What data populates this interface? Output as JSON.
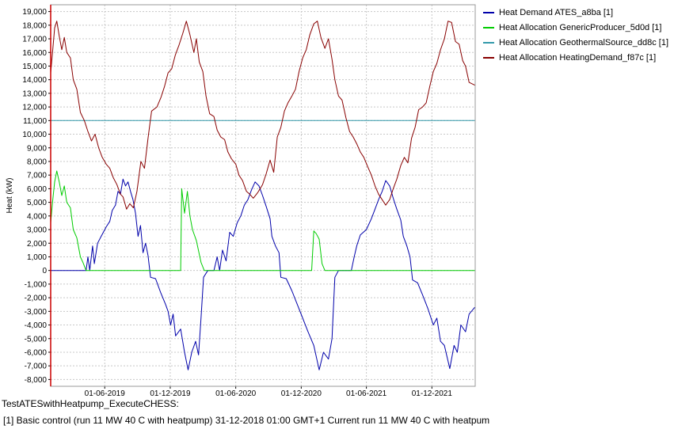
{
  "chart_data": {
    "type": "line",
    "xlabel": "",
    "ylabel": "Heat (kW)",
    "ylim": [
      -8500,
      19500
    ],
    "yticks": [
      19000,
      18000,
      17000,
      16000,
      15000,
      14000,
      13000,
      12000,
      11000,
      10000,
      9000,
      8000,
      7000,
      6000,
      5000,
      4000,
      3000,
      2000,
      1000,
      0,
      -1000,
      -2000,
      -3000,
      -4000,
      -5000,
      -6000,
      -7000,
      -8000
    ],
    "ytick_labels": [
      "19,000",
      "18,000",
      "17,000",
      "16,000",
      "15,000",
      "14,000",
      "13,000",
      "12,000",
      "11,000",
      "10,000",
      "9,000",
      "8,000",
      "7,000",
      "6,000",
      "5,000",
      "4,000",
      "3,000",
      "2,000",
      "1,000",
      "0",
      "-1,000",
      "-2,000",
      "-3,000",
      "-4,000",
      "-5,000",
      "-6,000",
      "-7,000",
      "-8,000"
    ],
    "xlim": [
      "2019-01-01",
      "2022-04-01"
    ],
    "xticks": [
      "2019-06-01",
      "2019-12-01",
      "2020-06-01",
      "2020-12-01",
      "2021-06-01",
      "2021-12-01"
    ],
    "xtick_labels": [
      "01-06-2019",
      "01-12-2019",
      "01-06-2020",
      "01-12-2020",
      "01-06-2021",
      "01-12-2021"
    ],
    "grid": true,
    "legend_position": "right",
    "series": [
      {
        "name": "Heat Demand ATES_a8ba [1]",
        "color": "#0000aa",
        "points": [
          [
            "2019-01-01",
            0
          ],
          [
            "2019-02-15",
            0
          ],
          [
            "2019-04-01",
            0
          ],
          [
            "2019-04-10",
            0
          ],
          [
            "2019-04-15",
            1000
          ],
          [
            "2019-04-20",
            0
          ],
          [
            "2019-04-28",
            1800
          ],
          [
            "2019-05-03",
            500
          ],
          [
            "2019-05-12",
            2000
          ],
          [
            "2019-05-22",
            2500
          ],
          [
            "2019-06-05",
            3200
          ],
          [
            "2019-06-15",
            3600
          ],
          [
            "2019-06-22",
            4400
          ],
          [
            "2019-07-01",
            4800
          ],
          [
            "2019-07-08",
            5800
          ],
          [
            "2019-07-15",
            5600
          ],
          [
            "2019-07-22",
            6700
          ],
          [
            "2019-07-29",
            6200
          ],
          [
            "2019-08-05",
            6500
          ],
          [
            "2019-08-12",
            5800
          ],
          [
            "2019-08-19",
            5200
          ],
          [
            "2019-08-26",
            4200
          ],
          [
            "2019-09-02",
            2500
          ],
          [
            "2019-09-09",
            3300
          ],
          [
            "2019-09-16",
            1300
          ],
          [
            "2019-09-23",
            2000
          ],
          [
            "2019-09-30",
            1100
          ],
          [
            "2019-10-07",
            -500
          ],
          [
            "2019-10-21",
            -600
          ],
          [
            "2019-11-04",
            -1600
          ],
          [
            "2019-11-18",
            -2500
          ],
          [
            "2019-11-25",
            -3000
          ],
          [
            "2019-12-02",
            -4000
          ],
          [
            "2019-12-09",
            -3200
          ],
          [
            "2019-12-16",
            -4800
          ],
          [
            "2019-12-30",
            -4300
          ],
          [
            "2020-01-10",
            -6000
          ],
          [
            "2020-01-20",
            -7300
          ],
          [
            "2020-01-30",
            -6000
          ],
          [
            "2020-02-10",
            -5200
          ],
          [
            "2020-02-18",
            -6200
          ],
          [
            "2020-02-25",
            -3500
          ],
          [
            "2020-03-03",
            -500
          ],
          [
            "2020-03-15",
            0
          ],
          [
            "2020-04-01",
            0
          ],
          [
            "2020-04-10",
            1000
          ],
          [
            "2020-04-17",
            0
          ],
          [
            "2020-04-25",
            1500
          ],
          [
            "2020-05-05",
            700
          ],
          [
            "2020-05-15",
            2800
          ],
          [
            "2020-05-25",
            2500
          ],
          [
            "2020-06-05",
            3500
          ],
          [
            "2020-06-15",
            4000
          ],
          [
            "2020-06-25",
            4800
          ],
          [
            "2020-07-05",
            5200
          ],
          [
            "2020-07-15",
            5900
          ],
          [
            "2020-07-25",
            6500
          ],
          [
            "2020-08-05",
            6200
          ],
          [
            "2020-08-15",
            5500
          ],
          [
            "2020-08-25",
            4700
          ],
          [
            "2020-09-05",
            3800
          ],
          [
            "2020-09-10",
            2500
          ],
          [
            "2020-09-20",
            1800
          ],
          [
            "2020-09-30",
            1300
          ],
          [
            "2020-10-05",
            -500
          ],
          [
            "2020-10-20",
            -600
          ],
          [
            "2020-11-05",
            -1500
          ],
          [
            "2020-11-20",
            -2500
          ],
          [
            "2020-12-05",
            -3500
          ],
          [
            "2020-12-20",
            -4500
          ],
          [
            "2021-01-05",
            -5500
          ],
          [
            "2021-01-20",
            -7300
          ],
          [
            "2021-02-01",
            -6000
          ],
          [
            "2021-02-15",
            -6500
          ],
          [
            "2021-02-25",
            -5000
          ],
          [
            "2021-03-05",
            -500
          ],
          [
            "2021-03-15",
            0
          ],
          [
            "2021-04-20",
            0
          ],
          [
            "2021-04-28",
            1000
          ],
          [
            "2021-05-05",
            1800
          ],
          [
            "2021-05-15",
            2600
          ],
          [
            "2021-06-01",
            3000
          ],
          [
            "2021-06-15",
            3800
          ],
          [
            "2021-06-25",
            4500
          ],
          [
            "2021-07-05",
            5200
          ],
          [
            "2021-07-15",
            5800
          ],
          [
            "2021-07-25",
            6600
          ],
          [
            "2021-08-05",
            6200
          ],
          [
            "2021-08-15",
            5300
          ],
          [
            "2021-08-25",
            4500
          ],
          [
            "2021-09-05",
            3700
          ],
          [
            "2021-09-12",
            2500
          ],
          [
            "2021-09-22",
            1800
          ],
          [
            "2021-10-01",
            1000
          ],
          [
            "2021-10-08",
            -700
          ],
          [
            "2021-10-22",
            -900
          ],
          [
            "2021-11-05",
            -1800
          ],
          [
            "2021-11-20",
            -2800
          ],
          [
            "2021-12-05",
            -4000
          ],
          [
            "2021-12-15",
            -3500
          ],
          [
            "2021-12-25",
            -5200
          ],
          [
            "2022-01-05",
            -5500
          ],
          [
            "2022-01-20",
            -7200
          ],
          [
            "2022-02-01",
            -5500
          ],
          [
            "2022-02-10",
            -6000
          ],
          [
            "2022-02-20",
            -4000
          ],
          [
            "2022-03-05",
            -4500
          ],
          [
            "2022-03-15",
            -3200
          ],
          [
            "2022-03-31",
            -2700
          ]
        ]
      },
      {
        "name": "Heat Allocation GenericProducer_5d0d [1]",
        "color": "#00cc00",
        "points": [
          [
            "2019-01-01",
            3500
          ],
          [
            "2019-01-06",
            5000
          ],
          [
            "2019-01-12",
            6500
          ],
          [
            "2019-01-18",
            7300
          ],
          [
            "2019-01-25",
            6500
          ],
          [
            "2019-02-01",
            5500
          ],
          [
            "2019-02-08",
            6200
          ],
          [
            "2019-02-15",
            5000
          ],
          [
            "2019-02-25",
            4600
          ],
          [
            "2019-03-05",
            3000
          ],
          [
            "2019-03-15",
            2400
          ],
          [
            "2019-03-25",
            1000
          ],
          [
            "2019-04-01",
            600
          ],
          [
            "2019-04-10",
            0
          ],
          [
            "2019-12-30",
            0
          ],
          [
            "2020-01-02",
            6000
          ],
          [
            "2020-01-10",
            4200
          ],
          [
            "2020-01-18",
            5800
          ],
          [
            "2020-01-25",
            4000
          ],
          [
            "2020-02-01",
            3000
          ],
          [
            "2020-02-12",
            2200
          ],
          [
            "2020-02-25",
            600
          ],
          [
            "2020-03-05",
            0
          ],
          [
            "2020-12-30",
            0
          ],
          [
            "2021-01-05",
            2900
          ],
          [
            "2021-01-12",
            2700
          ],
          [
            "2021-01-20",
            2300
          ],
          [
            "2021-01-28",
            500
          ],
          [
            "2021-02-05",
            0
          ],
          [
            "2022-03-31",
            0
          ]
        ]
      },
      {
        "name": "Heat Allocation GeothermalSource_dd8c [1]",
        "color": "#3399aa",
        "points": [
          [
            "2019-01-01",
            11000
          ],
          [
            "2022-03-31",
            11000
          ]
        ]
      },
      {
        "name": "Heat Allocation HeatingDemand_f87c [1]",
        "color": "#880000",
        "points": [
          [
            "2019-01-01",
            14500
          ],
          [
            "2019-01-06",
            16000
          ],
          [
            "2019-01-12",
            17800
          ],
          [
            "2019-01-18",
            18300
          ],
          [
            "2019-01-25",
            17200
          ],
          [
            "2019-02-01",
            16200
          ],
          [
            "2019-02-08",
            17100
          ],
          [
            "2019-02-15",
            16000
          ],
          [
            "2019-02-25",
            15600
          ],
          [
            "2019-03-05",
            14000
          ],
          [
            "2019-03-15",
            13300
          ],
          [
            "2019-03-25",
            11600
          ],
          [
            "2019-04-05",
            11000
          ],
          [
            "2019-04-15",
            10200
          ],
          [
            "2019-04-25",
            9500
          ],
          [
            "2019-05-05",
            10000
          ],
          [
            "2019-05-15",
            9000
          ],
          [
            "2019-05-25",
            8300
          ],
          [
            "2019-06-05",
            7800
          ],
          [
            "2019-06-15",
            7500
          ],
          [
            "2019-06-25",
            6800
          ],
          [
            "2019-07-05",
            6300
          ],
          [
            "2019-07-15",
            5600
          ],
          [
            "2019-07-22",
            5400
          ],
          [
            "2019-08-01",
            4500
          ],
          [
            "2019-08-10",
            4900
          ],
          [
            "2019-08-20",
            4600
          ],
          [
            "2019-08-30",
            5800
          ],
          [
            "2019-09-10",
            8000
          ],
          [
            "2019-09-20",
            7500
          ],
          [
            "2019-09-30",
            9700
          ],
          [
            "2019-10-10",
            11700
          ],
          [
            "2019-10-25",
            12000
          ],
          [
            "2019-11-05",
            12700
          ],
          [
            "2019-11-15",
            13500
          ],
          [
            "2019-11-25",
            14500
          ],
          [
            "2019-12-05",
            14800
          ],
          [
            "2019-12-15",
            15800
          ],
          [
            "2019-12-25",
            16500
          ],
          [
            "2020-01-05",
            17400
          ],
          [
            "2020-01-15",
            18300
          ],
          [
            "2020-01-25",
            17300
          ],
          [
            "2020-02-05",
            16000
          ],
          [
            "2020-02-12",
            17000
          ],
          [
            "2020-02-20",
            15300
          ],
          [
            "2020-03-01",
            14600
          ],
          [
            "2020-03-10",
            12800
          ],
          [
            "2020-03-20",
            11500
          ],
          [
            "2020-04-01",
            11300
          ],
          [
            "2020-04-10",
            10300
          ],
          [
            "2020-04-20",
            9800
          ],
          [
            "2020-05-01",
            9600
          ],
          [
            "2020-05-10",
            8700
          ],
          [
            "2020-05-20",
            8200
          ],
          [
            "2020-06-01",
            7800
          ],
          [
            "2020-06-10",
            7000
          ],
          [
            "2020-06-20",
            6600
          ],
          [
            "2020-07-01",
            5800
          ],
          [
            "2020-07-10",
            5600
          ],
          [
            "2020-07-20",
            5300
          ],
          [
            "2020-08-01",
            5700
          ],
          [
            "2020-08-15",
            6300
          ],
          [
            "2020-08-25",
            7100
          ],
          [
            "2020-09-05",
            8100
          ],
          [
            "2020-09-15",
            7200
          ],
          [
            "2020-09-25",
            9800
          ],
          [
            "2020-10-05",
            10500
          ],
          [
            "2020-10-15",
            11700
          ],
          [
            "2020-10-25",
            12300
          ],
          [
            "2020-11-05",
            12800
          ],
          [
            "2020-11-15",
            13300
          ],
          [
            "2020-11-25",
            14600
          ],
          [
            "2020-12-05",
            15600
          ],
          [
            "2020-12-15",
            16200
          ],
          [
            "2020-12-25",
            17300
          ],
          [
            "2021-01-05",
            18100
          ],
          [
            "2021-01-15",
            18300
          ],
          [
            "2021-01-25",
            17100
          ],
          [
            "2021-02-05",
            16300
          ],
          [
            "2021-02-15",
            17000
          ],
          [
            "2021-02-25",
            15500
          ],
          [
            "2021-03-05",
            14000
          ],
          [
            "2021-03-15",
            12800
          ],
          [
            "2021-03-25",
            12500
          ],
          [
            "2021-04-05",
            11200
          ],
          [
            "2021-04-15",
            10200
          ],
          [
            "2021-04-25",
            9800
          ],
          [
            "2021-05-05",
            9300
          ],
          [
            "2021-05-15",
            8700
          ],
          [
            "2021-05-25",
            8300
          ],
          [
            "2021-06-05",
            7600
          ],
          [
            "2021-06-15",
            7000
          ],
          [
            "2021-06-25",
            6200
          ],
          [
            "2021-07-05",
            5600
          ],
          [
            "2021-07-15",
            5200
          ],
          [
            "2021-07-25",
            4800
          ],
          [
            "2021-08-05",
            5200
          ],
          [
            "2021-08-15",
            6000
          ],
          [
            "2021-08-25",
            6700
          ],
          [
            "2021-09-05",
            7700
          ],
          [
            "2021-09-15",
            8300
          ],
          [
            "2021-09-25",
            7900
          ],
          [
            "2021-10-05",
            9700
          ],
          [
            "2021-10-15",
            10500
          ],
          [
            "2021-10-25",
            11800
          ],
          [
            "2021-11-05",
            12000
          ],
          [
            "2021-11-15",
            12300
          ],
          [
            "2021-11-25",
            13500
          ],
          [
            "2021-12-05",
            14600
          ],
          [
            "2021-12-15",
            15200
          ],
          [
            "2021-12-25",
            16200
          ],
          [
            "2022-01-05",
            17000
          ],
          [
            "2022-01-15",
            18300
          ],
          [
            "2022-01-25",
            18200
          ],
          [
            "2022-02-05",
            16800
          ],
          [
            "2022-02-15",
            16600
          ],
          [
            "2022-02-25",
            15400
          ],
          [
            "2022-03-05",
            15000
          ],
          [
            "2022-03-15",
            13800
          ],
          [
            "2022-03-31",
            13600
          ]
        ]
      }
    ]
  },
  "footer": {
    "caption": "TestATESwithHeatpump_ExecuteCHESS:",
    "run_info": "[1] Basic control (run 11 MW 40 C with heatpump) 31-12-2018 01:00 GMT+1 Current run 11 MW 40 C with heatpum"
  }
}
